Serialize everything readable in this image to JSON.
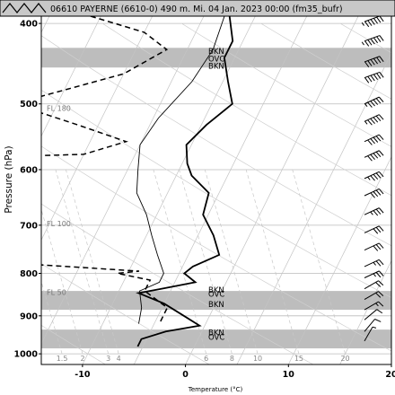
{
  "chart_data": {
    "type": "line",
    "title": "06610 PAYERNE (6610-0) 490 m. Mi. 04 Jan. 2023 00:00 (fm35_bufr)",
    "xlabel": "Temperature (°C)",
    "ylabel": "Pressure (hPa)",
    "xlim": [
      -14,
      20
    ],
    "ylim": [
      1030,
      392
    ],
    "y_scale": "log",
    "x_ticks": [
      -10,
      0,
      10,
      20
    ],
    "x_tick_labels": [
      "-10",
      "0",
      "10",
      "20"
    ],
    "y_ticks": [
      400,
      500,
      600,
      700,
      800,
      900,
      1000
    ],
    "y_tick_labels": [
      "400",
      "500",
      "600",
      "700",
      "800",
      "900",
      "1000"
    ],
    "grid": true,
    "isotherm_skew_per_decade": 40,
    "flight_levels": [
      {
        "label": "FL 180",
        "p": 506
      },
      {
        "label": "FL 100",
        "p": 697
      },
      {
        "label": "FL 50",
        "p": 843
      }
    ],
    "mixing_ratio_labels": [
      {
        "label": "1.5",
        "x": -12.5
      },
      {
        "label": "2",
        "x": -10.5
      },
      {
        "label": "3",
        "x": -8
      },
      {
        "label": "4",
        "x": -7
      },
      {
        "label": "6",
        "x": 1.5
      },
      {
        "label": "8",
        "x": 4
      },
      {
        "label": "10",
        "x": 6.5
      },
      {
        "label": "15",
        "x": 10.5
      },
      {
        "label": "20",
        "x": 15
      }
    ],
    "cloud_layers": [
      {
        "p_top": 428,
        "p_bottom": 452,
        "labels": [
          {
            "text": "BKN",
            "p": 432
          },
          {
            "text": "OVC",
            "p": 441
          },
          {
            "text": "BKN",
            "p": 450
          }
        ]
      },
      {
        "p_top": 840,
        "p_bottom": 885,
        "labels": [
          {
            "text": "BKN",
            "p": 838
          },
          {
            "text": "OVC",
            "p": 847
          },
          {
            "text": "BKN",
            "p": 872
          }
        ]
      },
      {
        "p_top": 935,
        "p_bottom": 985,
        "labels": [
          {
            "text": "BKN",
            "p": 943
          },
          {
            "text": "OVC",
            "p": 955
          }
        ]
      }
    ],
    "series": [
      {
        "id": "temperature",
        "style": "solid-thick",
        "color": "#000000",
        "points": [
          {
            "p": 392,
            "t": -12.5
          },
          {
            "p": 420,
            "t": -11.0
          },
          {
            "p": 440,
            "t": -11.0
          },
          {
            "p": 470,
            "t": -9.5
          },
          {
            "p": 500,
            "t": -8.0
          },
          {
            "p": 530,
            "t": -9.5
          },
          {
            "p": 560,
            "t": -10.5
          },
          {
            "p": 590,
            "t": -9.5
          },
          {
            "p": 610,
            "t": -8.5
          },
          {
            "p": 640,
            "t": -6.0
          },
          {
            "p": 680,
            "t": -5.5
          },
          {
            "p": 720,
            "t": -3.5
          },
          {
            "p": 760,
            "t": -2.0
          },
          {
            "p": 785,
            "t": -4.0
          },
          {
            "p": 800,
            "t": -4.5
          },
          {
            "p": 820,
            "t": -3.0
          },
          {
            "p": 835,
            "t": -6.0
          },
          {
            "p": 845,
            "t": -8.0
          },
          {
            "p": 870,
            "t": -5.0
          },
          {
            "p": 900,
            "t": -2.5
          },
          {
            "p": 925,
            "t": -0.5
          },
          {
            "p": 940,
            "t": -3.5
          },
          {
            "p": 960,
            "t": -5.5
          },
          {
            "p": 980,
            "t": -5.5
          }
        ]
      },
      {
        "id": "dewpoint-thin",
        "style": "solid-thin",
        "color": "#000000",
        "points": [
          {
            "p": 392,
            "t": -13.0
          },
          {
            "p": 430,
            "t": -12.5
          },
          {
            "p": 470,
            "t": -13.0
          },
          {
            "p": 520,
            "t": -14.5
          },
          {
            "p": 560,
            "t": -15.0
          },
          {
            "p": 600,
            "t": -14.0
          },
          {
            "p": 640,
            "t": -13.0
          },
          {
            "p": 680,
            "t": -11.0
          },
          {
            "p": 720,
            "t": -9.5
          },
          {
            "p": 760,
            "t": -8.0
          },
          {
            "p": 800,
            "t": -6.5
          },
          {
            "p": 820,
            "t": -6.5
          },
          {
            "p": 840,
            "t": -8.0
          },
          {
            "p": 880,
            "t": -7.0
          },
          {
            "p": 920,
            "t": -6.5
          }
        ]
      },
      {
        "id": "dewpoint",
        "style": "dashed-thick",
        "color": "#000000",
        "points": [
          {
            "p": 392,
            "t": -26.0
          },
          {
            "p": 410,
            "t": -20.0
          },
          {
            "p": 430,
            "t": -17.0
          },
          {
            "p": 460,
            "t": -20.0
          },
          {
            "p": 490,
            "t": -27.0
          },
          {
            "p": 500,
            "t": -40.0
          },
          {
            "p": 505,
            "t": -28.0
          },
          {
            "p": 530,
            "t": -22.0
          },
          {
            "p": 555,
            "t": -16.5
          },
          {
            "p": 575,
            "t": -20.0
          },
          {
            "p": 590,
            "t": -50.0
          },
          {
            "p": 605,
            "t": -30.0
          },
          {
            "p": 625,
            "t": -35.0
          },
          {
            "p": 660,
            "t": -55.0
          },
          {
            "p": 700,
            "t": -50.0
          },
          {
            "p": 780,
            "t": -20.0
          },
          {
            "p": 795,
            "t": -9.0
          },
          {
            "p": 800,
            "t": -11.0
          },
          {
            "p": 815,
            "t": -7.5
          },
          {
            "p": 840,
            "t": -7.5
          },
          {
            "p": 880,
            "t": -4.5
          },
          {
            "p": 915,
            "t": -4.5
          }
        ]
      }
    ],
    "wind_barbs": [
      {
        "p": 398,
        "dir": 250,
        "speed": 65
      },
      {
        "p": 420,
        "dir": 250,
        "speed": 65
      },
      {
        "p": 445,
        "dir": 250,
        "speed": 60
      },
      {
        "p": 465,
        "dir": 250,
        "speed": 60
      },
      {
        "p": 500,
        "dir": 245,
        "speed": 55
      },
      {
        "p": 525,
        "dir": 245,
        "speed": 55
      },
      {
        "p": 555,
        "dir": 245,
        "speed": 50
      },
      {
        "p": 580,
        "dir": 245,
        "speed": 50
      },
      {
        "p": 615,
        "dir": 245,
        "speed": 45
      },
      {
        "p": 645,
        "dir": 245,
        "speed": 40
      },
      {
        "p": 680,
        "dir": 245,
        "speed": 35
      },
      {
        "p": 715,
        "dir": 245,
        "speed": 30
      },
      {
        "p": 750,
        "dir": 245,
        "speed": 30
      },
      {
        "p": 785,
        "dir": 245,
        "speed": 25
      },
      {
        "p": 810,
        "dir": 245,
        "speed": 25
      },
      {
        "p": 835,
        "dir": 240,
        "speed": 20
      },
      {
        "p": 860,
        "dir": 240,
        "speed": 20
      },
      {
        "p": 885,
        "dir": 240,
        "speed": 15
      },
      {
        "p": 910,
        "dir": 230,
        "speed": 10
      },
      {
        "p": 940,
        "dir": 220,
        "speed": 10
      },
      {
        "p": 965,
        "dir": 210,
        "speed": 5
      }
    ]
  }
}
